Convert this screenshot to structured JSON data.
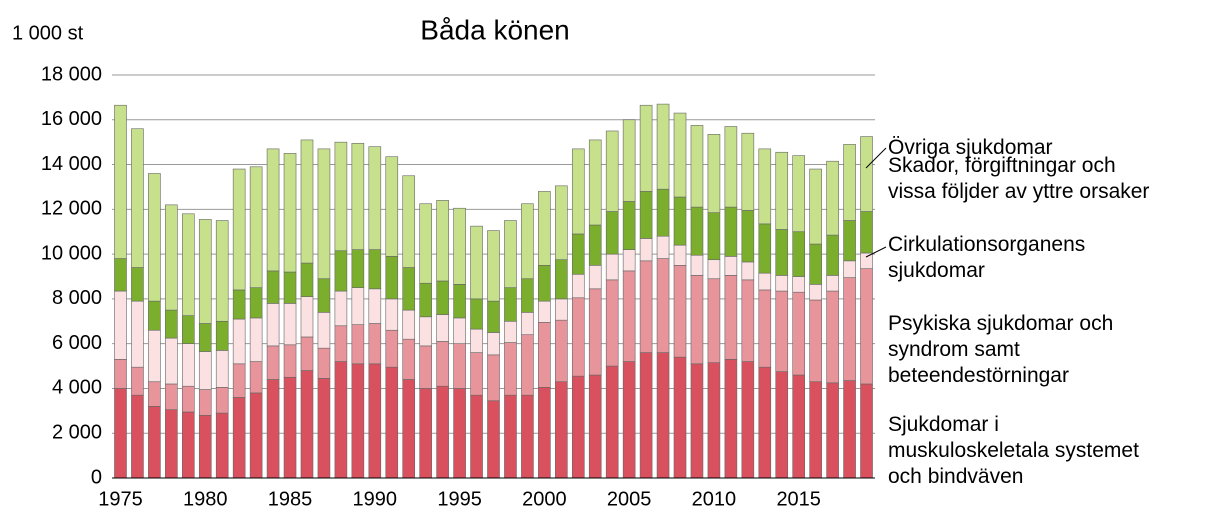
{
  "chart_data": {
    "type": "stacked_bar",
    "title": "Båda könen",
    "unit_label": "1 000 st",
    "categories": [
      "1975",
      null,
      null,
      null,
      null,
      "1980",
      null,
      null,
      null,
      null,
      "1985",
      null,
      null,
      null,
      null,
      "1990",
      null,
      null,
      null,
      null,
      "1995",
      null,
      null,
      null,
      null,
      "2000",
      null,
      null,
      null,
      null,
      "2005",
      null,
      null,
      null,
      null,
      "2010",
      null,
      null,
      null,
      null,
      "2015",
      null,
      null,
      null,
      null
    ],
    "series": [
      {
        "name": "Sjukdomar i\nmuskuloskeletala systemet\noch bindväven",
        "color": "#d9515e",
        "values": [
          4000,
          3700,
          3200,
          3050,
          2950,
          2800,
          2900,
          3600,
          3800,
          4400,
          4500,
          4800,
          4450,
          5200,
          5100,
          5100,
          4950,
          4400,
          4000,
          4100,
          4000,
          3700,
          3450,
          3700,
          3700,
          4050,
          4300,
          4550,
          4600,
          5000,
          5200,
          5600,
          5600,
          5400,
          5100,
          5150,
          5300,
          5200,
          4950,
          4750,
          4600,
          4300,
          4250,
          4350,
          4200
        ]
      },
      {
        "name": "Psykiska sjukdomar och\nsyndrom samt\nbeteendestörningar",
        "color": "#e8949b",
        "values": [
          1300,
          1250,
          1100,
          1150,
          1150,
          1150,
          1150,
          1500,
          1400,
          1500,
          1450,
          1500,
          1350,
          1600,
          1750,
          1800,
          1650,
          1800,
          1900,
          2000,
          2000,
          1900,
          2050,
          2350,
          2700,
          2900,
          2750,
          3500,
          3850,
          3850,
          4050,
          4100,
          4200,
          4100,
          3950,
          3750,
          3750,
          3650,
          3450,
          3600,
          3700,
          3650,
          4100,
          4600,
          5150
        ]
      },
      {
        "name": "Cirkulationsorganens\nsjukdomar",
        "color": "#fbe1e2",
        "values": [
          3050,
          2950,
          2300,
          2050,
          1900,
          1700,
          1650,
          2000,
          1950,
          1900,
          1850,
          1800,
          1600,
          1550,
          1650,
          1550,
          1400,
          1300,
          1300,
          1200,
          1150,
          1050,
          1000,
          950,
          1000,
          950,
          950,
          1050,
          1050,
          1150,
          950,
          1000,
          1000,
          900,
          900,
          850,
          850,
          800,
          750,
          700,
          700,
          700,
          700,
          750,
          700
        ]
      },
      {
        "name": "Skador, förgiftningar och\nvissa följder av yttre orsaker",
        "color": "#7bae2c",
        "values": [
          1450,
          1500,
          1300,
          1250,
          1250,
          1250,
          1300,
          1300,
          1350,
          1450,
          1400,
          1500,
          1500,
          1800,
          1700,
          1750,
          1900,
          1900,
          1500,
          1500,
          1500,
          1350,
          1400,
          1500,
          1500,
          1600,
          1750,
          1800,
          1800,
          1900,
          2150,
          2100,
          2100,
          2150,
          2150,
          2100,
          2200,
          2300,
          2200,
          2050,
          2000,
          1800,
          1800,
          1800,
          1850
        ]
      },
      {
        "name": "Övriga sjukdomar",
        "color": "#c6e08c",
        "values": [
          6850,
          6200,
          5700,
          4700,
          4550,
          4650,
          4500,
          5400,
          5400,
          5450,
          5300,
          5500,
          5800,
          4850,
          4750,
          4600,
          4450,
          4100,
          3550,
          3600,
          3400,
          3250,
          3150,
          3000,
          3350,
          3300,
          3300,
          3800,
          3800,
          3600,
          3650,
          3850,
          3800,
          3750,
          3650,
          3500,
          3600,
          3450,
          3350,
          3450,
          3400,
          3350,
          3300,
          3400,
          3350
        ]
      }
    ],
    "ylim": [
      0,
      18000
    ],
    "yticks": [
      0,
      {
        "value": 2000,
        "label": "2 000"
      },
      {
        "value": 4000,
        "label": "4 000"
      },
      {
        "value": 6000,
        "label": "6 000"
      },
      {
        "value": 8000,
        "label": "8 000"
      },
      {
        "value": 10000,
        "label": "10 000"
      },
      {
        "value": 12000,
        "label": "12 000"
      },
      {
        "value": 14000,
        "label": "14 000"
      },
      {
        "value": 16000,
        "label": "16 000"
      },
      {
        "value": 18000,
        "label": "18 000"
      }
    ],
    "grid": true
  }
}
